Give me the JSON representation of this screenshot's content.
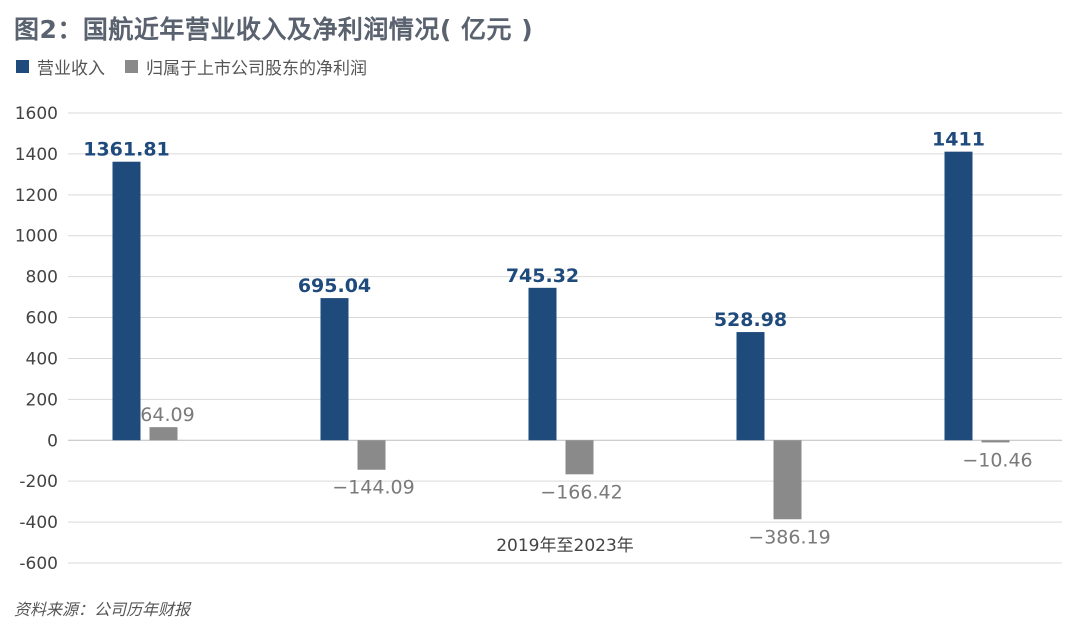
{
  "title": "图2：国航近年营业收入及净利润情况( 亿元 )",
  "legend": {
    "revenue": "营业收入",
    "net_profit": "归属于上市公司股东的净利润"
  },
  "source": "资料来源：公司历年财报",
  "colors": {
    "revenue": "#1f4a7c",
    "net_profit": "#8a8a8a",
    "grid": "#d9d9d9"
  },
  "chart_data": {
    "type": "bar",
    "title": "图2：国航近年营业收入及净利润情况( 亿元 )",
    "xlabel": "2019年至2023年",
    "ylabel": "",
    "ylim": [
      -600,
      1600
    ],
    "yticks": [
      1600,
      1400,
      1200,
      1000,
      800,
      600,
      400,
      200,
      0,
      -200,
      -400,
      -600
    ],
    "grid": true,
    "legend_position": "top-left",
    "series": [
      {
        "name": "营业收入",
        "values": [
          1361.81,
          695.04,
          745.32,
          528.98,
          1411
        ],
        "labels": [
          "1361.81",
          "695.04",
          "745.32",
          "528.98",
          "1411"
        ]
      },
      {
        "name": "归属于上市公司股东的净利润",
        "values": [
          64.09,
          -144.09,
          -166.42,
          -386.19,
          -10.46
        ],
        "labels": [
          "64.09",
          "−144.09",
          "−166.42",
          "−386.19",
          "−10.46"
        ]
      }
    ]
  }
}
